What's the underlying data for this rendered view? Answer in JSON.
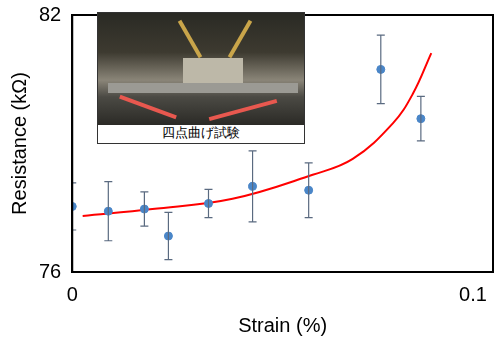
{
  "chart_data": {
    "type": "scatter",
    "x_label": "Strain (%)",
    "y_label": "Resistance (kΩ)",
    "annotations": [
      "四点曲げ試験"
    ],
    "xlim": [
      0,
      0.105
    ],
    "xticks": [
      0,
      0.1
    ],
    "ylim": [
      76,
      82
    ],
    "yticks": [
      76,
      82
    ],
    "grid": false,
    "series": [
      {
        "type": "scatter",
        "color": "#4a86c8",
        "marker": "circle",
        "x": [
          0,
          0.009,
          0.018,
          0.024,
          0.034,
          0.045,
          0.059,
          0.077,
          0.087
        ],
        "values": [
          77.53,
          77.42,
          77.47,
          76.84,
          77.6,
          78.0,
          77.91,
          80.73,
          79.58
        ],
        "errors": [
          0.55,
          0.69,
          0.4,
          0.55,
          0.33,
          0.83,
          0.64,
          0.8,
          0.52
        ]
      },
      {
        "type": "line",
        "color": "#ff0000",
        "line_style": "solid",
        "x": [
          0.0026,
          0.02,
          0.04,
          0.06,
          0.07,
          0.08,
          0.085,
          0.0896
        ],
        "values": [
          77.31,
          77.47,
          77.71,
          78.27,
          78.64,
          79.47,
          80.16,
          81.11
        ]
      }
    ]
  }
}
